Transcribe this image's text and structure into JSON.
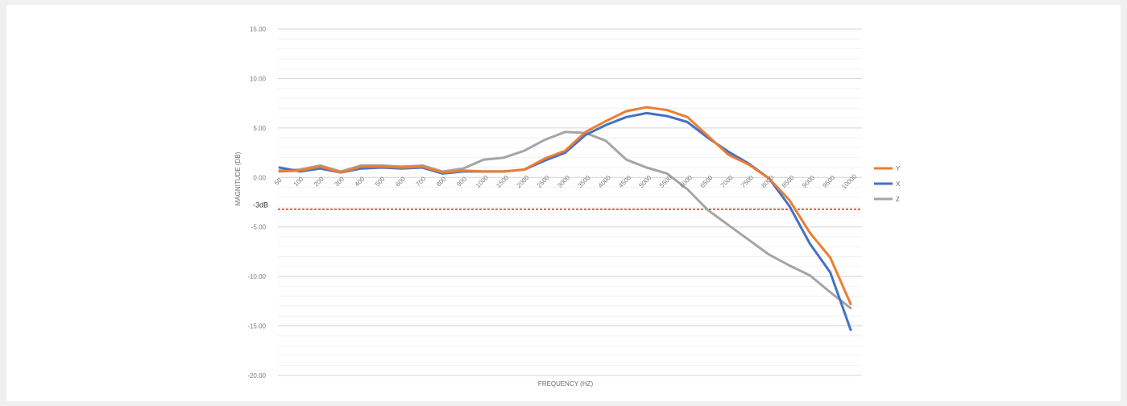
{
  "chart_data": {
    "type": "line",
    "title": "",
    "xlabel": "FREQUENCY (HZ)",
    "ylabel": "MAGNITUDE (DB)",
    "categories": [
      "50",
      "100",
      "200",
      "300",
      "400",
      "500",
      "600",
      "700",
      "800",
      "900",
      "1000",
      "1500",
      "2000",
      "2500",
      "3000",
      "3500",
      "4000",
      "4500",
      "5000",
      "5500",
      "6000",
      "6500",
      "7000",
      "7500",
      "8000",
      "8500",
      "9000",
      "9500",
      "10000"
    ],
    "ylim": [
      -20,
      15
    ],
    "yticks": [
      15,
      10,
      5,
      0,
      -5,
      -10,
      -15,
      -20
    ],
    "ytick_labels": [
      "15.00",
      "10.00",
      "5.00",
      "0.00",
      "-5.00",
      "-10.00",
      "-15.00",
      "-20.00"
    ],
    "grid": true,
    "legend_position": "right",
    "series": [
      {
        "name": "Y",
        "color": "#ED7D31",
        "values": [
          0.6,
          0.7,
          1.1,
          0.5,
          1.1,
          1.1,
          1.0,
          1.1,
          0.5,
          0.7,
          0.6,
          0.6,
          0.8,
          1.9,
          2.7,
          4.6,
          5.7,
          6.7,
          7.1,
          6.8,
          6.1,
          4.2,
          2.3,
          1.3,
          -0.1,
          -2.3,
          -5.6,
          -8.1,
          -12.8
        ]
      },
      {
        "name": "X",
        "color": "#4472C4",
        "values": [
          1.0,
          0.6,
          0.9,
          0.5,
          0.9,
          1.0,
          0.9,
          1.0,
          0.4,
          0.6,
          0.6,
          0.6,
          0.8,
          1.7,
          2.5,
          4.3,
          5.3,
          6.1,
          6.5,
          6.2,
          5.6,
          4.0,
          2.6,
          1.4,
          -0.1,
          -2.9,
          -6.7,
          -9.6,
          -15.4
        ]
      },
      {
        "name": "Z",
        "color": "#A5A5A5",
        "values": [
          0.7,
          0.8,
          1.2,
          0.6,
          1.2,
          1.2,
          1.1,
          1.2,
          0.6,
          0.9,
          1.8,
          2.0,
          2.7,
          3.8,
          4.6,
          4.5,
          3.7,
          1.8,
          1.0,
          0.4,
          -1.2,
          -3.3,
          -4.8,
          -6.3,
          -7.8,
          -8.9,
          -9.9,
          -11.6,
          -13.2
        ]
      }
    ],
    "reference_line": {
      "label": "-3dB",
      "value": -3.2,
      "color": "#C00000"
    }
  }
}
